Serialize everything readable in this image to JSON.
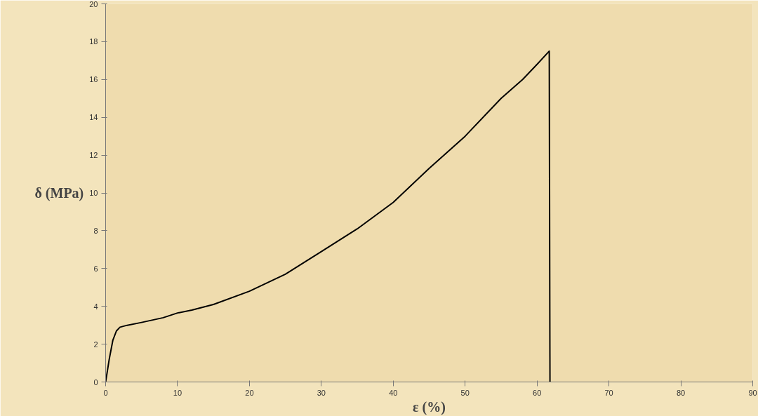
{
  "chart_data": {
    "type": "line",
    "xlabel": "ε (%)",
    "ylabel": "δ (MPa)",
    "x": [
      0,
      0.5,
      1,
      1.5,
      2,
      3,
      5,
      8,
      10,
      12,
      15,
      20,
      25,
      30,
      35,
      40,
      45,
      50,
      55,
      58,
      60,
      61.7,
      61.8
    ],
    "series": [
      {
        "color": "#000000",
        "values": [
          0,
          1.2,
          2.2,
          2.7,
          2.9,
          3.0,
          3.15,
          3.4,
          3.65,
          3.8,
          4.1,
          4.8,
          5.7,
          6.9,
          8.1,
          9.5,
          11.3,
          13.0,
          15.0,
          16.0,
          16.8,
          17.5,
          0
        ]
      }
    ],
    "xlim": [
      0,
      90
    ],
    "xticks": [
      0,
      10,
      20,
      30,
      40,
      50,
      60,
      70,
      80,
      90
    ],
    "ylim": [
      0,
      20
    ],
    "yticks": [
      0,
      2,
      4,
      6,
      8,
      10,
      12,
      14,
      16,
      18,
      20
    ],
    "grid": false,
    "marker": "none",
    "line_style": "solid"
  }
}
